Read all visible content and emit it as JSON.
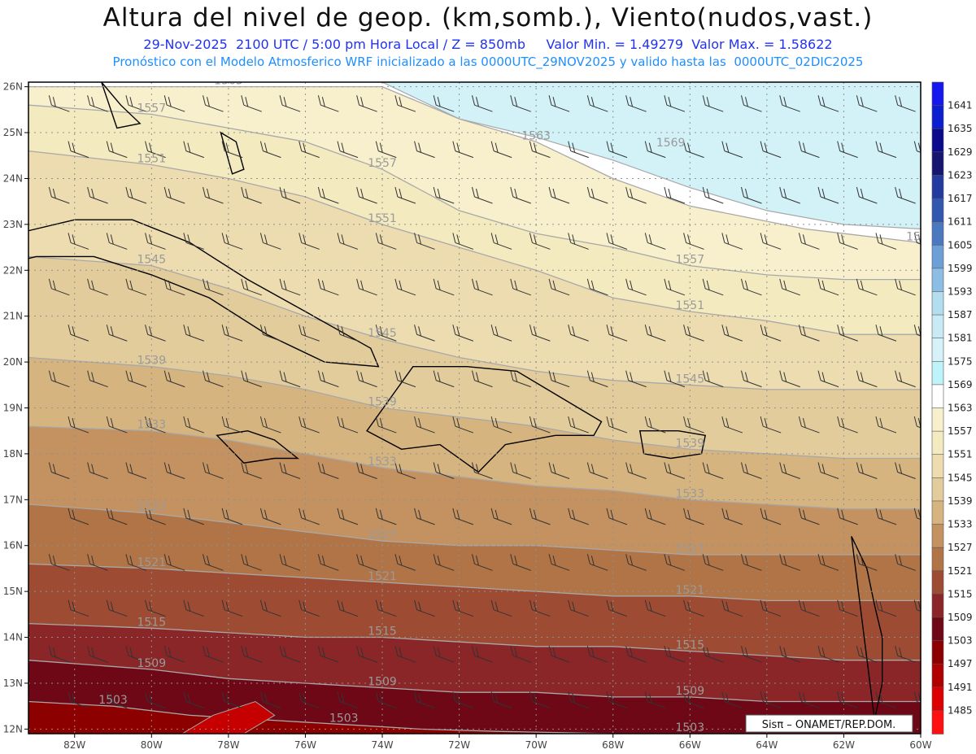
{
  "header": {
    "title": "Altura del nivel de geop. (km,somb.), Viento(nudos,vast.)",
    "subtitle": "29-Nov-2025  2100 UTC / 5:00 pm Hora Local / Z = 850mb     Valor Min. = 1.49279  Valor Max. = 1.58622",
    "subtitle2": "Pronóstico con el Modelo Atmosferico WRF inicializado a las 0000UTC_29NOV2025 y valido hasta las  0000UTC_02DIC2025"
  },
  "chart_data": {
    "type": "heatmap",
    "title": "Altura del nivel de geop. (km,somb.), Viento(nudos,vast.)",
    "level": "850mb",
    "valid_time": "29-Nov-2025 2100 UTC / 5:00 pm Hora Local",
    "value_min": 1.49279,
    "value_max": 1.58622,
    "x_ticks": [
      "82W",
      "80W",
      "78W",
      "76W",
      "74W",
      "72W",
      "70W",
      "68W",
      "66W",
      "64W",
      "62W",
      "60W"
    ],
    "x_tick_values": [
      -82,
      -80,
      -78,
      -76,
      -74,
      -72,
      -70,
      -68,
      -66,
      -64,
      -62,
      -60
    ],
    "y_ticks": [
      "12N",
      "13N",
      "14N",
      "15N",
      "16N",
      "17N",
      "18N",
      "19N",
      "20N",
      "21N",
      "22N",
      "23N",
      "24N",
      "25N",
      "26N"
    ],
    "y_tick_values": [
      12,
      13,
      14,
      15,
      16,
      17,
      18,
      19,
      20,
      21,
      22,
      23,
      24,
      25,
      26
    ],
    "xlim": [
      -83.2,
      -60
    ],
    "ylim": [
      11.9,
      26.1
    ],
    "grid": true,
    "colorbar": {
      "placement": "right",
      "levels": [
        1641,
        1635,
        1629,
        1623,
        1617,
        1611,
        1605,
        1599,
        1593,
        1587,
        1581,
        1575,
        1569,
        1563,
        1557,
        1551,
        1545,
        1539,
        1533,
        1527,
        1521,
        1515,
        1509,
        1503,
        1497,
        1491,
        1485
      ],
      "colors": [
        "#1616ee",
        "#0c1fcf",
        "#0a0a8a",
        "#161670",
        "#233a9e",
        "#3158ae",
        "#4a79bf",
        "#6b9fd6",
        "#8cbde4",
        "#b2def0",
        "#c8eaf4",
        "#d7f1f8",
        "#bff3fa",
        "#ffffff",
        "#f8f0cc",
        "#f4eabf",
        "#ecdcb0",
        "#e3cc9c",
        "#d6b47f",
        "#c49260",
        "#b17447",
        "#9d4c33",
        "#8a2528",
        "#6e0816",
        "#8c0000",
        "#b00000",
        "#dd0000",
        "#ff1010"
      ]
    },
    "contour_labels": [
      "1569",
      "1563",
      "1557",
      "1551",
      "1545",
      "1539",
      "1533",
      "1527",
      "1521",
      "1515",
      "1509"
    ],
    "band_contours": [
      {
        "value": 1563,
        "lon": [
          -83.2,
          -78,
          -74,
          -72,
          -70,
          -68,
          -66,
          -63,
          -60
        ],
        "lat": [
          26.0,
          26.0,
          26.0,
          25.3,
          24.8,
          24.0,
          23.4,
          22.9,
          22.6
        ]
      },
      {
        "value": 1557,
        "lon": [
          -83.2,
          -80,
          -78,
          -76,
          -74,
          -72,
          -70,
          -68,
          -66,
          -64,
          -62,
          -60
        ],
        "lat": [
          25.6,
          25.4,
          25.1,
          24.8,
          24.2,
          23.3,
          22.8,
          22.5,
          22.1,
          21.9,
          21.8,
          21.8
        ]
      },
      {
        "value": 1551,
        "lon": [
          -83.2,
          -80,
          -78,
          -76,
          -74,
          -72,
          -70,
          -68,
          -66,
          -64,
          -62,
          -60
        ],
        "lat": [
          24.6,
          24.3,
          24.0,
          23.6,
          23.0,
          22.5,
          22.0,
          21.4,
          21.1,
          20.9,
          20.6,
          20.6
        ]
      },
      {
        "value": 1545,
        "lon": [
          -83.2,
          -80,
          -78,
          -76,
          -74,
          -72,
          -70,
          -68,
          -66,
          -64,
          -62,
          -60
        ],
        "lat": [
          22.3,
          22.1,
          21.6,
          21.0,
          20.5,
          20.1,
          19.8,
          19.6,
          19.5,
          19.4,
          19.4,
          19.4
        ]
      },
      {
        "value": 1539,
        "lon": [
          -83.2,
          -80,
          -78,
          -76,
          -74,
          -72,
          -70,
          -68,
          -66,
          -64,
          -62,
          -60
        ],
        "lat": [
          20.1,
          19.9,
          19.7,
          19.4,
          19.0,
          18.8,
          18.6,
          18.3,
          18.1,
          18.0,
          17.9,
          17.9
        ]
      },
      {
        "value": 1533,
        "lon": [
          -83.2,
          -80,
          -78,
          -76,
          -74,
          -72,
          -70,
          -68,
          -66,
          -64,
          -62,
          -60
        ],
        "lat": [
          18.6,
          18.5,
          18.3,
          18.0,
          17.7,
          17.5,
          17.3,
          17.2,
          17.0,
          16.9,
          16.8,
          16.8
        ]
      },
      {
        "value": 1527,
        "lon": [
          -83.2,
          -80,
          -78,
          -76,
          -74,
          -72,
          -70,
          -68,
          -66,
          -64,
          -62,
          -60
        ],
        "lat": [
          16.9,
          16.7,
          16.5,
          16.3,
          16.1,
          16.0,
          16.0,
          15.9,
          15.8,
          15.8,
          15.8,
          15.8
        ]
      },
      {
        "value": 1521,
        "lon": [
          -83.2,
          -80,
          -78,
          -76,
          -74,
          -72,
          -70,
          -68,
          -66,
          -64,
          -62,
          -60
        ],
        "lat": [
          15.6,
          15.5,
          15.4,
          15.3,
          15.2,
          15.1,
          15.0,
          14.9,
          14.9,
          14.8,
          14.8,
          14.8
        ]
      },
      {
        "value": 1515,
        "lon": [
          -83.2,
          -80,
          -78,
          -76,
          -74,
          -72,
          -70,
          -68,
          -66,
          -64,
          -62,
          -60
        ],
        "lat": [
          14.3,
          14.2,
          14.1,
          14.0,
          14.0,
          13.9,
          13.8,
          13.8,
          13.7,
          13.6,
          13.5,
          13.5
        ]
      },
      {
        "value": 1509,
        "lon": [
          -83.2,
          -80,
          -78,
          -76,
          -74,
          -72,
          -70,
          -68,
          -66,
          -64,
          -62,
          -60
        ],
        "lat": [
          13.5,
          13.3,
          13.1,
          13.0,
          12.9,
          12.8,
          12.8,
          12.7,
          12.7,
          12.6,
          12.6,
          12.6
        ]
      },
      {
        "value": 1503,
        "lon": [
          -83.2,
          -81,
          -79,
          -77,
          -75,
          -73,
          -71,
          -68,
          -66,
          -63,
          -60
        ],
        "lat": [
          12.6,
          12.5,
          12.3,
          12.2,
          12.1,
          12.0,
          11.95,
          11.9,
          11.9,
          11.9,
          11.9
        ]
      }
    ],
    "pale_blue_zone": {
      "value": 1569,
      "lon": [
        -74,
        -72,
        -70,
        -68,
        -66,
        -64,
        -62,
        -60
      ],
      "lat": [
        26.1,
        25.3,
        24.9,
        24.4,
        23.8,
        23.3,
        23.0,
        22.9
      ]
    },
    "red_spot": {
      "value": 1491,
      "lon": [
        -79.2,
        -78.4,
        -77.3,
        -76.8,
        -77.6,
        -79.0
      ],
      "lat": [
        11.9,
        12.3,
        12.6,
        12.3,
        11.9,
        11.9
      ]
    },
    "islands": [
      {
        "name": "Cuba",
        "lon": [
          -84.9,
          -83.5,
          -82.0,
          -80.5,
          -79.0,
          -77.5,
          -76.0,
          -74.3,
          -74.1,
          -75.5,
          -77.0,
          -78.5,
          -80.0,
          -81.5,
          -83.0,
          -84.9
        ],
        "lat": [
          21.9,
          22.8,
          23.1,
          23.1,
          22.6,
          21.8,
          21.1,
          20.3,
          19.9,
          20.0,
          20.6,
          21.4,
          21.9,
          22.3,
          22.3,
          21.9
        ]
      },
      {
        "name": "Jamaica",
        "lon": [
          -78.3,
          -77.5,
          -76.8,
          -76.2,
          -76.8,
          -77.6,
          -78.3
        ],
        "lat": [
          18.4,
          18.5,
          18.3,
          17.9,
          17.9,
          17.8,
          18.4
        ]
      },
      {
        "name": "La Española",
        "lon": [
          -74.4,
          -73.2,
          -72.8,
          -71.8,
          -70.5,
          -69.5,
          -68.3,
          -68.5,
          -69.5,
          -70.8,
          -71.5,
          -72.5,
          -73.5,
          -74.4
        ],
        "lat": [
          18.5,
          19.9,
          19.9,
          19.9,
          19.8,
          19.3,
          18.7,
          18.4,
          18.4,
          18.2,
          17.6,
          18.2,
          18.1,
          18.5
        ]
      },
      {
        "name": "Puerto Rico",
        "lon": [
          -67.3,
          -66.3,
          -65.6,
          -65.7,
          -66.5,
          -67.2,
          -67.3
        ],
        "lat": [
          18.5,
          18.5,
          18.4,
          18.0,
          17.9,
          18.0,
          18.5
        ]
      },
      {
        "name": "Andros",
        "lon": [
          -78.2,
          -77.8,
          -77.6,
          -77.9,
          -78.2
        ],
        "lat": [
          25.0,
          24.8,
          24.2,
          24.1,
          25.0
        ]
      },
      {
        "name": "Florida",
        "lon": [
          -81.3,
          -80.8,
          -80.3,
          -80.9,
          -81.3
        ],
        "lat": [
          26.1,
          25.6,
          25.2,
          25.1,
          26.1
        ]
      },
      {
        "name": "Antillas Menores",
        "lon": [
          -61.8,
          -61.4,
          -61.2,
          -61.0,
          -61.0,
          -61.2,
          -61.8
        ],
        "lat": [
          16.2,
          15.5,
          14.7,
          14.0,
          13.0,
          12.2,
          16.2
        ]
      }
    ],
    "wind_barbs": {
      "rows": [
        25.6,
        24.6,
        23.6,
        22.6,
        21.6,
        20.6,
        19.6,
        18.6,
        17.6,
        16.6,
        15.6,
        14.6,
        13.6,
        12.6
      ],
      "lon_start": -82.6,
      "lon_step": 1.0
    },
    "credit": "Sisπ – ONAMET/REP.DOM."
  }
}
